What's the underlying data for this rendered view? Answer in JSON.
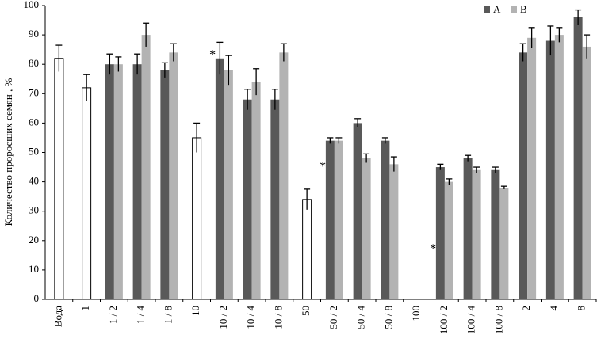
{
  "chart_data": {
    "type": "bar",
    "y_label": "Количество проросших семян , %",
    "categories": [
      "Вода",
      "1",
      "1 / 2",
      "1 / 4",
      "1 / 8",
      "10",
      "10 / 2",
      "10 / 4",
      "10 / 8",
      "50",
      "50 / 2",
      "50 / 4",
      "50 / 8",
      "100",
      "100 / 2",
      "100 / 4",
      "100 / 8",
      "2",
      "4",
      "8"
    ],
    "series": [
      {
        "name": "A",
        "color": "#595959",
        "values": [
          null,
          null,
          80,
          80,
          78,
          null,
          82,
          68,
          68,
          null,
          54,
          60,
          54,
          null,
          45,
          48,
          44,
          84,
          88,
          96
        ],
        "errors": [
          null,
          null,
          3.5,
          3.5,
          2.5,
          null,
          5.5,
          3.5,
          3.5,
          null,
          1,
          1.5,
          1,
          null,
          1,
          1,
          1,
          3,
          5,
          2.5
        ]
      },
      {
        "name": "B",
        "color": "#b3b3b3",
        "values": [
          null,
          null,
          80,
          90,
          84,
          null,
          78,
          74,
          84,
          null,
          54,
          48,
          46,
          null,
          40,
          44,
          38,
          89,
          90,
          86
        ],
        "errors": [
          null,
          null,
          2.5,
          4,
          3,
          null,
          5,
          4.5,
          3,
          null,
          1,
          1.5,
          2.5,
          null,
          1,
          1,
          0.5,
          3.5,
          2.5,
          4
        ]
      },
      {
        "color": "#ffffff",
        "values": [
          82,
          72,
          null,
          null,
          null,
          55,
          null,
          null,
          null,
          34,
          null,
          null,
          null,
          null,
          null,
          null,
          null,
          null,
          null,
          null
        ],
        "errors": [
          4.5,
          4.5,
          null,
          null,
          null,
          5,
          null,
          null,
          null,
          3.5,
          null,
          null,
          null,
          null,
          null,
          null,
          null,
          null,
          null,
          null
        ]
      }
    ],
    "annotations": [
      {
        "text": "*",
        "category": "10",
        "y": 84
      },
      {
        "text": "*",
        "category": "50",
        "y": 46
      },
      {
        "text": "*",
        "category": "100",
        "y": 18
      }
    ],
    "ylim": [
      0,
      100
    ],
    "yticks": [
      0,
      10,
      20,
      30,
      40,
      50,
      60,
      70,
      80,
      90,
      100
    ],
    "grid": false,
    "legend": "top-right"
  }
}
